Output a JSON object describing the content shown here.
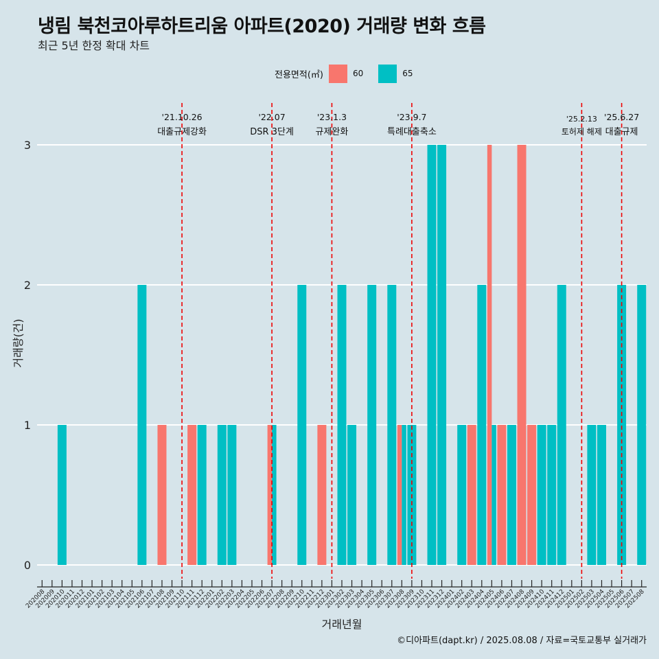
{
  "title": "냉림 북천코아루하트리움 아파트(2020) 거래량 변화 흐름",
  "subtitle": "최근 5년 한정 확대 차트",
  "legend": {
    "title": "전용면적(㎡)"
  },
  "caption": "©디아파트(dapt.kr) / 2025.08.08 / 자료=국토교통부 실거래가",
  "colors": {
    "background": "#d6e4ea",
    "s60": "#f8766d",
    "s65": "#00bfc4",
    "event_line": "#ee0000",
    "grid": "#ffffff"
  },
  "chart_data": {
    "type": "bar",
    "xlabel": "거래년월",
    "ylabel": "거래량(건)",
    "ylim": [
      0,
      3
    ],
    "yticks": [
      0,
      1,
      2,
      3
    ],
    "grid": true,
    "legend_position": "top",
    "categories": [
      "202008",
      "202009",
      "202010",
      "202011",
      "202012",
      "202101",
      "202102",
      "202103",
      "202104",
      "202105",
      "202106",
      "202107",
      "202108",
      "202109",
      "202110",
      "202111",
      "202112",
      "202201",
      "202202",
      "202203",
      "202204",
      "202205",
      "202206",
      "202207",
      "202208",
      "202209",
      "202210",
      "202211",
      "202212",
      "202301",
      "202302",
      "202303",
      "202304",
      "202305",
      "202306",
      "202307",
      "202308",
      "202309",
      "202310",
      "202311",
      "202312",
      "202401",
      "202402",
      "202403",
      "202404",
      "202405",
      "202406",
      "202407",
      "202408",
      "202409",
      "202410",
      "202411",
      "202412",
      "202501",
      "202502",
      "202503",
      "202504",
      "202505",
      "202506",
      "202507",
      "202508"
    ],
    "series": [
      {
        "name": "60",
        "color": "#f8766d",
        "values": [
          0,
          0,
          0,
          0,
          0,
          0,
          0,
          0,
          0,
          0,
          0,
          0,
          1,
          0,
          0,
          1,
          0,
          0,
          0,
          0,
          0,
          0,
          0,
          1,
          0,
          0,
          0,
          0,
          1,
          0,
          0,
          0,
          0,
          0,
          0,
          0,
          1,
          0,
          0,
          0,
          0,
          0,
          0,
          1,
          0,
          3,
          1,
          0,
          3,
          1,
          0,
          0,
          0,
          0,
          0,
          0,
          0,
          0,
          0,
          0,
          0
        ]
      },
      {
        "name": "65",
        "color": "#00bfc4",
        "values": [
          0,
          0,
          1,
          0,
          0,
          0,
          0,
          0,
          0,
          0,
          2,
          0,
          0,
          0,
          0,
          0,
          1,
          0,
          1,
          1,
          0,
          0,
          0,
          1,
          0,
          0,
          2,
          0,
          0,
          0,
          2,
          1,
          0,
          2,
          0,
          2,
          1,
          1,
          0,
          3,
          3,
          0,
          1,
          0,
          2,
          1,
          0,
          1,
          0,
          0,
          1,
          1,
          2,
          0,
          0,
          1,
          1,
          0,
          2,
          0,
          2
        ]
      }
    ],
    "events": [
      {
        "at": "202110",
        "date": "'21.10.26",
        "label": "대출규제강화"
      },
      {
        "at": "202207",
        "date": "'22.07",
        "label": "DSR 3단계"
      },
      {
        "at": "202301",
        "date": "'23.1.3",
        "label": "규제완화"
      },
      {
        "at": "202309",
        "date": "'23.9.7",
        "label": "특례대출축소"
      },
      {
        "at": "202502",
        "date": "'25.2.13",
        "label": "토허제 해제"
      },
      {
        "at": "202506",
        "date": "'25.6.27",
        "label": "대출규제"
      }
    ]
  }
}
